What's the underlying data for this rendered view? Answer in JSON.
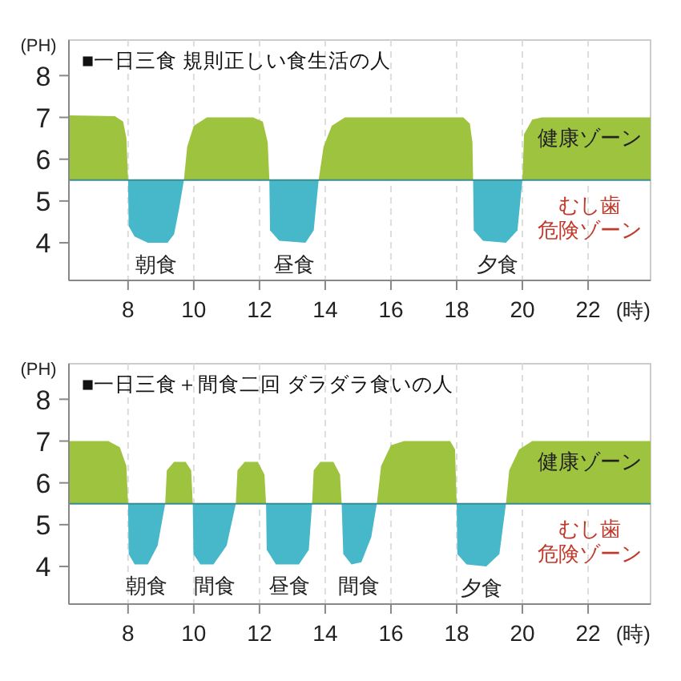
{
  "chart_data": [
    {
      "type": "area",
      "title": "■一日三食 規則正しい食生活の人",
      "xlabel": "(時)",
      "ylabel": "(PH)",
      "xlim": [
        6.2,
        23.9
      ],
      "ylim": [
        3.1,
        8.85
      ],
      "xticks": [
        8,
        10,
        12,
        14,
        16,
        18,
        20,
        22
      ],
      "yticks": [
        4,
        5,
        6,
        7,
        8
      ],
      "grid": "x",
      "ref_lines": [
        {
          "axis": "y",
          "value": 5.5,
          "color": "#3d8c8f"
        }
      ],
      "series": [
        {
          "color": "#9dc33f",
          "x": [
            6.2,
            7.6,
            7.85,
            7.95,
            8.0
          ],
          "values": [
            7.05,
            7.03,
            6.9,
            6.5,
            5.5
          ]
        },
        {
          "color": "#46b8c9",
          "x": [
            8.0,
            8.02,
            8.2,
            8.6,
            9.2,
            9.4,
            9.55,
            9.7
          ],
          "values": [
            5.5,
            4.4,
            4.15,
            4.0,
            4.0,
            4.2,
            4.8,
            5.5
          ]
        },
        {
          "color": "#9dc33f",
          "x": [
            9.7,
            9.8,
            10.0,
            10.4,
            11.8,
            12.1,
            12.25,
            12.3
          ],
          "values": [
            5.5,
            6.3,
            6.8,
            7.0,
            7.0,
            6.9,
            6.4,
            5.5
          ]
        },
        {
          "color": "#46b8c9",
          "x": [
            12.3,
            12.32,
            12.6,
            13.4,
            13.65,
            13.8
          ],
          "values": [
            5.5,
            4.3,
            4.05,
            4.0,
            4.3,
            5.5
          ]
        },
        {
          "color": "#9dc33f",
          "x": [
            13.8,
            13.95,
            14.2,
            14.6,
            18.2,
            18.4,
            18.48,
            18.5
          ],
          "values": [
            5.5,
            6.3,
            6.8,
            7.0,
            7.0,
            6.85,
            6.4,
            5.5
          ]
        },
        {
          "color": "#46b8c9",
          "x": [
            18.5,
            18.52,
            18.8,
            19.5,
            19.85,
            20.0
          ],
          "values": [
            5.5,
            4.3,
            4.05,
            4.0,
            4.3,
            5.5
          ]
        },
        {
          "color": "#9dc33f",
          "x": [
            20.0,
            20.05,
            20.3,
            20.6,
            23.9
          ],
          "values": [
            5.5,
            6.6,
            6.95,
            7.0,
            7.0
          ]
        }
      ],
      "annotations": [
        "朝食",
        "昼食",
        "夕食",
        "健康ゾーン",
        "むし歯危険ゾーン"
      ]
    },
    {
      "type": "area",
      "title": "■一日三食＋間食二回 ダラダラ食いの人",
      "xlabel": "(時)",
      "ylabel": "(PH)",
      "xlim": [
        6.2,
        23.9
      ],
      "ylim": [
        3.1,
        8.85
      ],
      "xticks": [
        8,
        10,
        12,
        14,
        16,
        18,
        20,
        22
      ],
      "yticks": [
        4,
        5,
        6,
        7,
        8
      ],
      "grid": "x",
      "ref_lines": [
        {
          "axis": "y",
          "value": 5.5,
          "color": "#3d8c8f"
        }
      ],
      "series": [
        {
          "color": "#9dc33f",
          "x": [
            6.2,
            7.4,
            7.75,
            7.95,
            8.0
          ],
          "values": [
            7.0,
            7.0,
            6.85,
            6.4,
            5.5
          ]
        },
        {
          "color": "#46b8c9",
          "x": [
            8.0,
            8.02,
            8.2,
            8.6,
            8.9,
            9.13
          ],
          "values": [
            5.5,
            4.3,
            4.05,
            4.05,
            4.5,
            5.5
          ]
        },
        {
          "color": "#9dc33f",
          "x": [
            9.13,
            9.18,
            9.4,
            9.75,
            9.92,
            9.97
          ],
          "values": [
            5.5,
            6.3,
            6.5,
            6.5,
            6.3,
            5.5
          ]
        },
        {
          "color": "#46b8c9",
          "x": [
            9.97,
            9.99,
            10.2,
            10.6,
            11.0,
            11.28
          ],
          "values": [
            5.5,
            4.3,
            4.05,
            4.05,
            4.5,
            5.5
          ]
        },
        {
          "color": "#9dc33f",
          "x": [
            11.28,
            11.33,
            11.55,
            11.95,
            12.15,
            12.2
          ],
          "values": [
            5.5,
            6.3,
            6.5,
            6.5,
            6.2,
            5.5
          ]
        },
        {
          "color": "#46b8c9",
          "x": [
            12.2,
            12.22,
            12.5,
            13.2,
            13.5,
            13.6
          ],
          "values": [
            5.5,
            4.4,
            4.05,
            4.05,
            4.4,
            5.5
          ]
        },
        {
          "color": "#9dc33f",
          "x": [
            13.6,
            13.65,
            13.85,
            14.25,
            14.45,
            14.5
          ],
          "values": [
            5.5,
            6.3,
            6.5,
            6.5,
            6.2,
            5.5
          ]
        },
        {
          "color": "#46b8c9",
          "x": [
            14.5,
            14.55,
            14.8,
            15.1,
            15.4,
            15.57
          ],
          "values": [
            5.5,
            4.3,
            4.05,
            4.1,
            4.7,
            5.5
          ]
        },
        {
          "color": "#9dc33f",
          "x": [
            15.57,
            15.7,
            16.0,
            16.4,
            17.8,
            17.95,
            18.0
          ],
          "values": [
            5.5,
            6.4,
            6.9,
            7.0,
            7.0,
            6.8,
            5.5
          ]
        },
        {
          "color": "#46b8c9",
          "x": [
            18.0,
            18.02,
            18.3,
            18.9,
            19.3,
            19.5
          ],
          "values": [
            5.5,
            4.3,
            4.05,
            4.0,
            4.3,
            5.5
          ]
        },
        {
          "color": "#9dc33f",
          "x": [
            19.5,
            19.6,
            19.9,
            20.3,
            23.9
          ],
          "values": [
            5.5,
            6.3,
            6.8,
            7.0,
            7.0
          ]
        }
      ],
      "annotations": [
        "朝食",
        "間食",
        "昼食",
        "間食",
        "夕食",
        "健康ゾーン",
        "むし歯危険ゾーン"
      ]
    }
  ]
}
